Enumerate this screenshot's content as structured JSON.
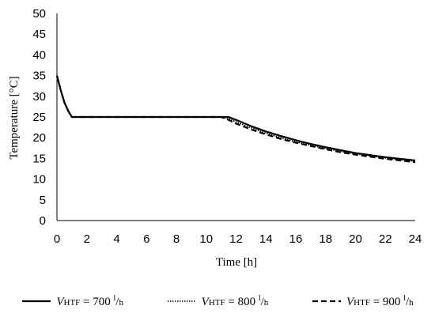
{
  "chart_data": {
    "type": "line",
    "title": "",
    "xlabel": "Time [h]",
    "ylabel": "Temperature [°C]",
    "xlim": [
      0,
      24
    ],
    "ylim": [
      0,
      50
    ],
    "xticks": [
      "0",
      "2",
      "4",
      "6",
      "8",
      "10",
      "12",
      "14",
      "16",
      "18",
      "20",
      "22",
      "24"
    ],
    "yticks": [
      "0",
      "5",
      "10",
      "15",
      "20",
      "25",
      "30",
      "35",
      "40",
      "45",
      "50"
    ],
    "grid": false,
    "legend_position": "bottom",
    "series": [
      {
        "name": "V HTF = 700 l/h",
        "name_parts": {
          "v": "V",
          "sub": "HTF",
          "eq": " = 700 ",
          "sup": "l",
          "slash": "/",
          "unit": "h"
        },
        "style": "solid",
        "x": [
          0,
          0.25,
          0.5,
          0.75,
          1.0,
          2,
          4,
          6,
          8,
          10,
          11,
          11.5,
          12,
          13,
          14,
          15,
          16,
          17,
          18,
          19,
          20,
          21,
          22,
          23,
          24
        ],
        "y": [
          35,
          31.5,
          28.5,
          26.5,
          25,
          25,
          25,
          25,
          25,
          25,
          25,
          25,
          24.3,
          22.8,
          21.5,
          20.4,
          19.4,
          18.5,
          17.7,
          17.0,
          16.3,
          15.8,
          15.3,
          14.9,
          14.5
        ]
      },
      {
        "name": "V HTF = 800 l/h",
        "name_parts": {
          "v": "V",
          "sub": "HTF",
          "eq": " = 800 ",
          "sup": "l",
          "slash": "/",
          "unit": "h"
        },
        "style": "dotted",
        "x": [
          0,
          0.25,
          0.5,
          0.75,
          1.0,
          2,
          4,
          6,
          8,
          10,
          11,
          11.5,
          12,
          13,
          14,
          15,
          16,
          17,
          18,
          19,
          20,
          21,
          22,
          23,
          24
        ],
        "y": [
          35,
          31.5,
          28.5,
          26.5,
          25,
          25,
          25,
          25,
          25,
          25,
          25,
          24.6,
          23.8,
          22.4,
          21.1,
          20.0,
          19.0,
          18.2,
          17.4,
          16.7,
          16.1,
          15.6,
          15.1,
          14.7,
          14.3
        ]
      },
      {
        "name": "V HTF = 900 l/h",
        "name_parts": {
          "v": "V",
          "sub": "HTF",
          "eq": " = 900 ",
          "sup": "l",
          "slash": "/",
          "unit": "h"
        },
        "style": "dashed",
        "x": [
          0,
          0.25,
          0.5,
          0.75,
          1.0,
          2,
          4,
          6,
          8,
          10,
          11,
          11.5,
          12,
          13,
          14,
          15,
          16,
          17,
          18,
          19,
          20,
          21,
          22,
          23,
          24
        ],
        "y": [
          35,
          31.5,
          28.5,
          26.5,
          25,
          25,
          25,
          25,
          25,
          25,
          25,
          24.3,
          23.4,
          22.0,
          20.8,
          19.7,
          18.8,
          18.0,
          17.2,
          16.5,
          15.9,
          15.4,
          14.9,
          14.5,
          14.1
        ]
      }
    ]
  }
}
